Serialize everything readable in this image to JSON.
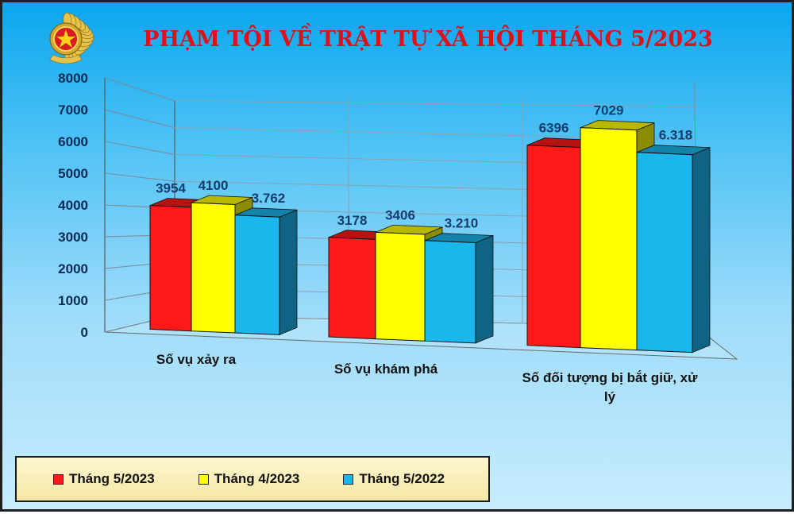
{
  "colors": {
    "series": [
      "#ff1a1a",
      "#ffff00",
      "#1ab6ec"
    ]
  },
  "chart_data": {
    "type": "bar",
    "title": "PHẠM TỘI VỀ TRẬT TỰ XÃ HỘI THÁNG 5/2023",
    "categories": [
      {
        "line1": "Số vụ xảy ra",
        "line2": ""
      },
      {
        "line1": "Số vụ khám phá",
        "line2": ""
      },
      {
        "line1": "Số đối tượng bị bắt giữ, xử",
        "line2": "lý"
      }
    ],
    "series": [
      {
        "name": "Tháng 5/2023",
        "values": [
          3954,
          3178,
          6396
        ],
        "labels": [
          "3954",
          "3178",
          "6396"
        ]
      },
      {
        "name": "Tháng 4/2023",
        "values": [
          4100,
          3406,
          7029
        ],
        "labels": [
          "4100",
          "3406",
          "7029"
        ]
      },
      {
        "name": "Tháng 5/2022",
        "values": [
          3762,
          3210,
          6318
        ],
        "labels": [
          "3.762",
          "3.210",
          "6.318"
        ]
      }
    ],
    "ylim": [
      0,
      8000
    ],
    "yticks": [
      "0",
      "1000",
      "2000",
      "3000",
      "4000",
      "5000",
      "6000",
      "7000",
      "8000"
    ],
    "legend_position": "bottom-left",
    "grid": true
  }
}
